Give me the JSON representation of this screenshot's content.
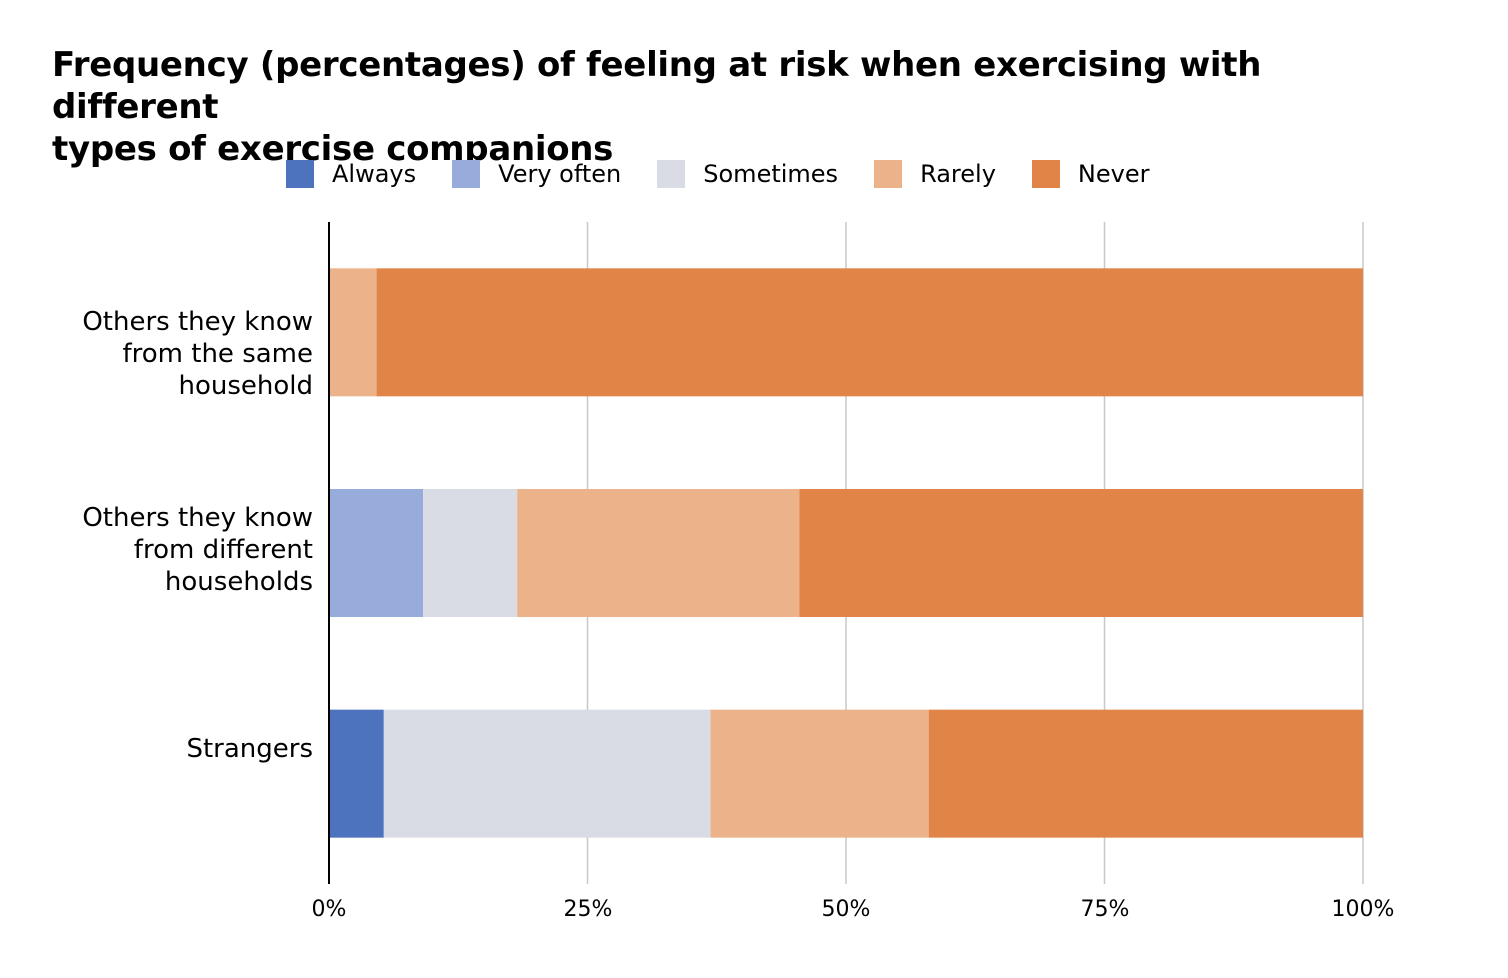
{
  "chart_data": {
    "type": "bar",
    "orientation": "horizontal",
    "stacked": true,
    "title": [
      "Frequency (percentages) of feeling at risk when exercising with different",
      "types of exercise companions"
    ],
    "categories": [
      [
        "Others they know",
        "from the same",
        "household"
      ],
      [
        "Others they know",
        "from different",
        "households"
      ],
      [
        "Strangers"
      ]
    ],
    "series": [
      {
        "name": "Always",
        "color": "#4e73be",
        "values": [
          0,
          0,
          5.3
        ]
      },
      {
        "name": "Very often",
        "color": "#97acda",
        "values": [
          0,
          9.1,
          0
        ]
      },
      {
        "name": "Sometimes",
        "color": "#d9dce4",
        "values": [
          0,
          9.1,
          31.6
        ]
      },
      {
        "name": "Rarely",
        "color": "#ecb38a",
        "values": [
          4.6,
          27.3,
          21.1
        ]
      },
      {
        "name": "Never",
        "color": "#e08447",
        "values": [
          95.4,
          54.5,
          42.0
        ]
      }
    ],
    "xlim": [
      0,
      100
    ],
    "xticks": [
      "0%",
      "25%",
      "50%",
      "75%",
      "100%"
    ],
    "grid": true,
    "legend_position": "top"
  }
}
